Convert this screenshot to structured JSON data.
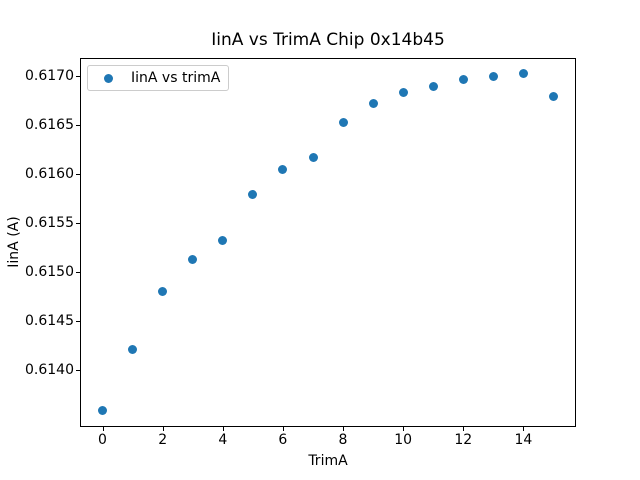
{
  "window": {
    "background": "#ffffff"
  },
  "chart_data": {
    "type": "scatter",
    "title": "IinA vs TrimA Chip 0x14b45",
    "xlabel": "TrimA",
    "ylabel": "IinA (A)",
    "grid": false,
    "legend_position": "upper left",
    "marker_color": "#1f77b4",
    "marker_shape": "circle",
    "xlim": [
      -0.75,
      15.75
    ],
    "ylim": [
      0.6134185,
      0.6171815
    ],
    "xticks": [
      {
        "v": 0,
        "label": "0"
      },
      {
        "v": 2,
        "label": "2"
      },
      {
        "v": 4,
        "label": "4"
      },
      {
        "v": 6,
        "label": "6"
      },
      {
        "v": 8,
        "label": "8"
      },
      {
        "v": 10,
        "label": "10"
      },
      {
        "v": 12,
        "label": "12"
      },
      {
        "v": 14,
        "label": "14"
      }
    ],
    "yticks": [
      {
        "v": 0.614,
        "label": "0.6140"
      },
      {
        "v": 0.6145,
        "label": "0.6145"
      },
      {
        "v": 0.615,
        "label": "0.6150"
      },
      {
        "v": 0.6155,
        "label": "0.6155"
      },
      {
        "v": 0.616,
        "label": "0.6160"
      },
      {
        "v": 0.6165,
        "label": "0.6165"
      },
      {
        "v": 0.617,
        "label": "0.6170"
      }
    ],
    "series": [
      {
        "name": "IinA vs trimA",
        "x": [
          0,
          1,
          2,
          3,
          4,
          5,
          6,
          7,
          8,
          9,
          10,
          11,
          12,
          13,
          14,
          15
        ],
        "y": [
          0.61359,
          0.61421,
          0.6148,
          0.61513,
          0.61532,
          0.61579,
          0.61604,
          0.61617,
          0.61652,
          0.61672,
          0.61683,
          0.61689,
          0.61696,
          0.61699,
          0.61702,
          0.61679
        ]
      }
    ]
  }
}
